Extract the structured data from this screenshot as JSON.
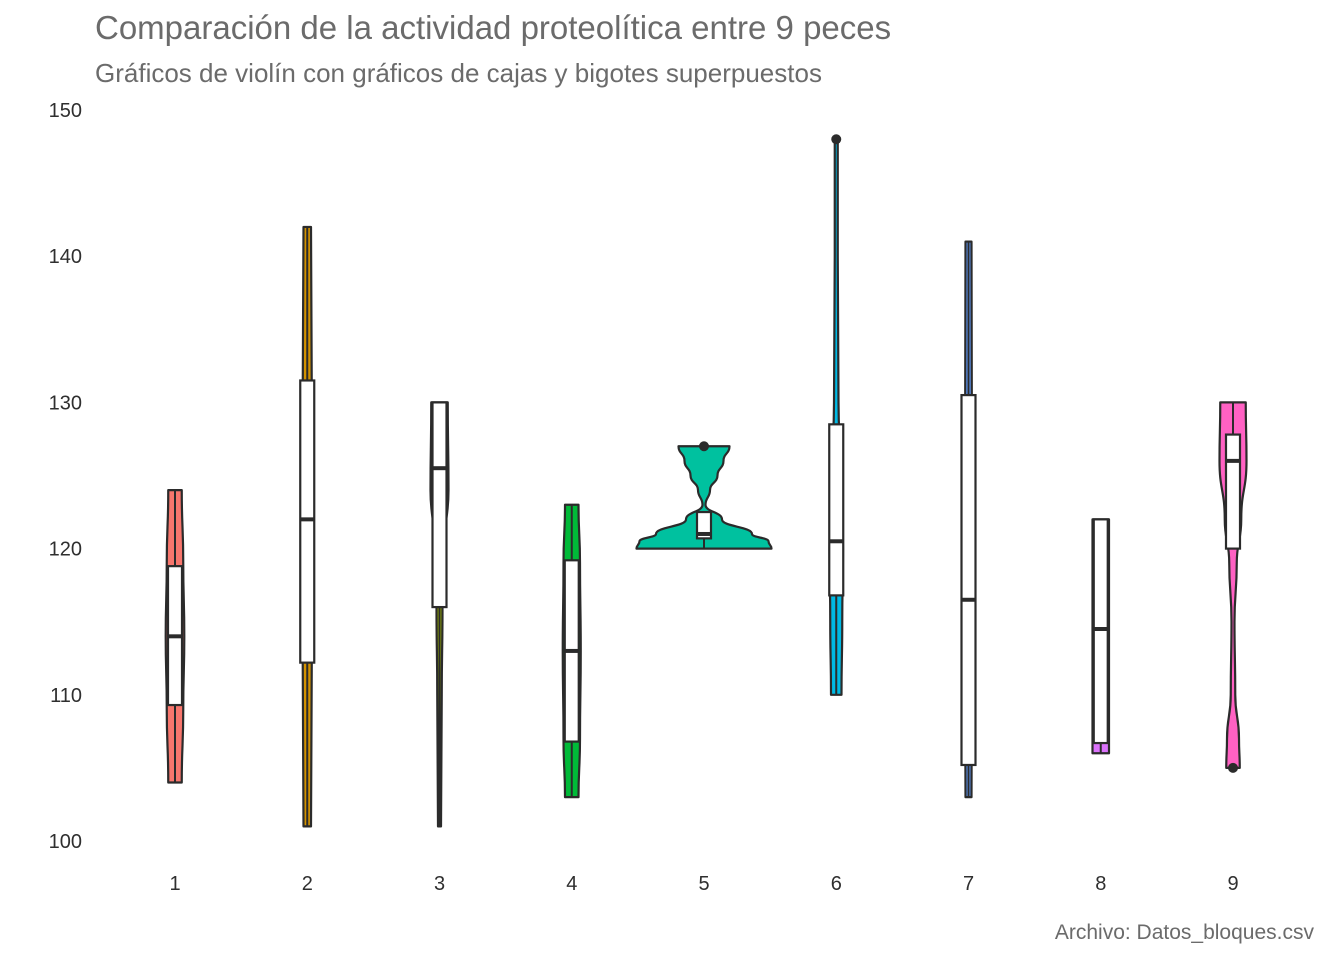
{
  "title": "Comparación de la actividad proteolítica entre 9 peces",
  "subtitle": "Gráficos de violín con gráficos de cajas y bigotes superpuestos",
  "caption": "Archivo: Datos_bloques.csv",
  "chart_data": {
    "type": "violin",
    "xlabel": "",
    "ylabel": "",
    "ylim": [
      100,
      150
    ],
    "grid": false,
    "legend": "none",
    "yticks": [
      100,
      110,
      120,
      130,
      140,
      150
    ],
    "categories": [
      "1",
      "2",
      "3",
      "4",
      "5",
      "6",
      "7",
      "8",
      "9"
    ],
    "groups": [
      {
        "name": "1",
        "color": "#f8766d",
        "min": 104,
        "q1": 109.3,
        "median": 114,
        "q3": 118.8,
        "max": 124,
        "outliers": [],
        "violin": [
          [
            104,
            0.45
          ],
          [
            109,
            0.55
          ],
          [
            114,
            0.62
          ],
          [
            119,
            0.55
          ],
          [
            124,
            0.45
          ]
        ]
      },
      {
        "name": "2",
        "color": "#d39200",
        "min": 101,
        "q1": 112.2,
        "median": 122,
        "q3": 131.5,
        "max": 142,
        "outliers": [],
        "violin": [
          [
            101,
            0.25
          ],
          [
            112,
            0.3
          ],
          [
            122,
            0.35
          ],
          [
            131,
            0.3
          ],
          [
            142,
            0.25
          ]
        ]
      },
      {
        "name": "3",
        "color": "#93aa00",
        "min": 101,
        "q1": 116,
        "median": 125.5,
        "q3": 130,
        "max": 130,
        "outliers": [],
        "violin": [
          [
            101,
            0.1
          ],
          [
            110,
            0.15
          ],
          [
            116,
            0.2
          ],
          [
            120,
            0.3
          ],
          [
            124,
            0.6
          ],
          [
            130,
            0.55
          ]
        ]
      },
      {
        "name": "4",
        "color": "#00ba38",
        "min": 103,
        "q1": 106.8,
        "median": 113,
        "q3": 119.2,
        "max": 123,
        "outliers": [],
        "violin": [
          [
            103,
            0.45
          ],
          [
            107,
            0.55
          ],
          [
            113,
            0.6
          ],
          [
            119,
            0.55
          ],
          [
            123,
            0.45
          ]
        ]
      },
      {
        "name": "5",
        "color": "#00c19f",
        "min": 120,
        "q1": 120.7,
        "median": 121,
        "q3": 122.5,
        "max": 122.5,
        "outliers": [
          127
        ],
        "violin": [
          [
            120,
            4.5
          ],
          [
            120.5,
            4.3
          ],
          [
            121,
            3.2
          ],
          [
            122,
            1.2
          ],
          [
            123,
            0.1
          ],
          [
            124,
            0.4
          ],
          [
            125,
            0.9
          ],
          [
            126,
            1.3
          ],
          [
            127,
            1.7
          ]
        ]
      },
      {
        "name": "6",
        "color": "#00b9e3",
        "min": 110,
        "q1": 116.8,
        "median": 120.5,
        "q3": 128.5,
        "max": 128.5,
        "outliers": [
          148
        ],
        "violin": [
          [
            110,
            0.35
          ],
          [
            115,
            0.4
          ],
          [
            120,
            0.45
          ],
          [
            125,
            0.3
          ],
          [
            130,
            0.15
          ],
          [
            140,
            0.1
          ],
          [
            148,
            0.1
          ]
        ]
      },
      {
        "name": "7",
        "color": "#619cff",
        "min": 103,
        "q1": 105.2,
        "median": 116.5,
        "q3": 130.5,
        "max": 141,
        "outliers": [],
        "violin": [
          [
            103,
            0.2
          ],
          [
            110,
            0.22
          ],
          [
            116,
            0.23
          ],
          [
            130,
            0.22
          ],
          [
            141,
            0.2
          ]
        ]
      },
      {
        "name": "8",
        "color": "#db72fb",
        "min": 106,
        "q1": 106.7,
        "median": 114.5,
        "q3": 122,
        "max": 122,
        "outliers": [],
        "violin": [
          [
            106,
            0.55
          ],
          [
            114,
            0.55
          ],
          [
            122,
            0.55
          ]
        ]
      },
      {
        "name": "9",
        "color": "#ff61c3",
        "min": 120,
        "q1": 120,
        "median": 126,
        "q3": 127.8,
        "max": 130,
        "outliers": [
          105
        ],
        "violin": [
          [
            105,
            0.45
          ],
          [
            107,
            0.4
          ],
          [
            110,
            0.15
          ],
          [
            115,
            0.1
          ],
          [
            119,
            0.25
          ],
          [
            122,
            0.55
          ],
          [
            126,
            0.9
          ],
          [
            130,
            0.85
          ]
        ]
      }
    ]
  }
}
